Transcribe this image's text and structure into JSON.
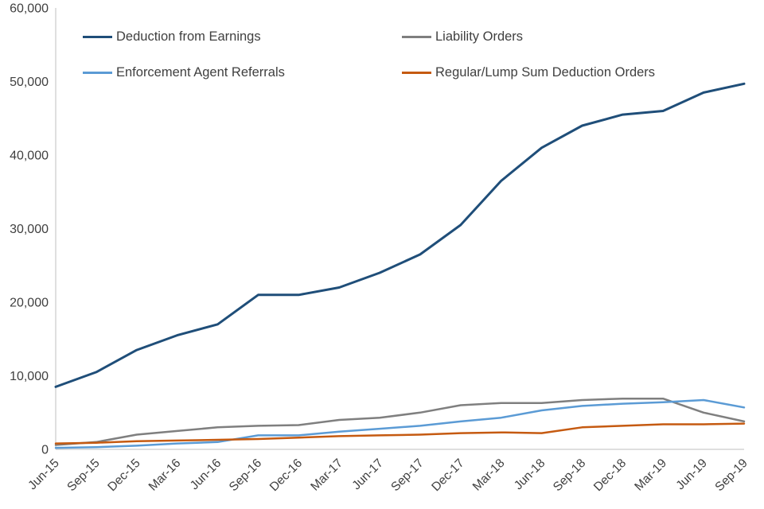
{
  "chart_data": {
    "type": "line",
    "title": "",
    "xlabel": "",
    "ylabel": "",
    "grid": false,
    "legend_position": "top-inside-two-columns",
    "axis_color": "#BFBFBF",
    "text_color": "#404040",
    "ylim": [
      0,
      60000
    ],
    "y_ticks": [
      0,
      10000,
      20000,
      30000,
      40000,
      50000,
      60000
    ],
    "y_tick_labels": [
      "0",
      "10,000",
      "20,000",
      "30,000",
      "40,000",
      "50,000",
      "60,000"
    ],
    "x": [
      "Jun-15",
      "Sep-15",
      "Dec-15",
      "Mar-16",
      "Jun-16",
      "Sep-16",
      "Dec-16",
      "Mar-17",
      "Jun-17",
      "Sep-17",
      "Dec-17",
      "Mar-18",
      "Jun-18",
      "Sep-18",
      "Dec-18",
      "Mar-19",
      "Jun-19",
      "Sep-19"
    ],
    "series": [
      {
        "name": "Deduction from Earnings",
        "color": "#1F4E79",
        "values": [
          8500,
          10500,
          13500,
          15500,
          17000,
          21000,
          21000,
          22000,
          24000,
          26500,
          30500,
          36500,
          41000,
          44000,
          45500,
          46000,
          48500,
          49700
        ]
      },
      {
        "name": "Liability Orders",
        "color": "#7F7F7F",
        "values": [
          600,
          1000,
          2000,
          2500,
          3000,
          3200,
          3300,
          4000,
          4300,
          5000,
          6000,
          6300,
          6300,
          6700,
          6900,
          6900,
          5000,
          3800
        ]
      },
      {
        "name": "Enforcement Agent Referrals",
        "color": "#5B9BD5",
        "values": [
          200,
          300,
          500,
          800,
          1000,
          1900,
          1900,
          2400,
          2800,
          3200,
          3800,
          4300,
          5300,
          5900,
          6200,
          6400,
          6700,
          5700
        ]
      },
      {
        "name": "Regular/Lump Sum Deduction Orders",
        "color": "#C55A11",
        "values": [
          800,
          900,
          1100,
          1200,
          1300,
          1400,
          1600,
          1800,
          1900,
          2000,
          2200,
          2300,
          2200,
          3000,
          3200,
          3400,
          3400,
          3500
        ]
      }
    ]
  }
}
